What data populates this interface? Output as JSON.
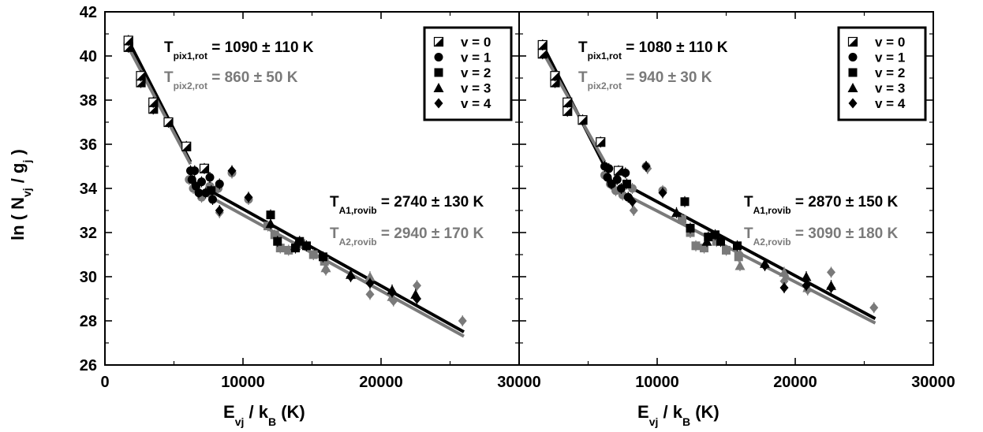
{
  "chart_data": {
    "type": "scatter",
    "ylabel": {
      "main": "ln ( N",
      "sub1": "vj",
      "mid": " / g",
      "sub2": "j",
      "end": ")"
    },
    "xlim": [
      0,
      30000
    ],
    "ylim": [
      26,
      42
    ],
    "x_ticks": [
      "0",
      "10000",
      "20000",
      "30000"
    ],
    "y_ticks": [
      "26",
      "28",
      "30",
      "32",
      "34",
      "36",
      "38",
      "40",
      "42"
    ],
    "xlabel": {
      "main": "E",
      "sub1": "vj",
      "mid": " / k",
      "sub2": "B",
      "end": " (K)"
    },
    "legend": {
      "placement": "top-right",
      "entries": [
        {
          "label": "v = 0",
          "marker": "half-square"
        },
        {
          "label": "v = 1",
          "marker": "circle"
        },
        {
          "label": "v = 2",
          "marker": "square"
        },
        {
          "label": "v = 3",
          "marker": "triangle"
        },
        {
          "label": "v = 4",
          "marker": "diamond"
        }
      ]
    },
    "colors": {
      "pix1": "#000000",
      "pix2": "#7a7a7a"
    },
    "panels": [
      {
        "annotations": {
          "rot1": {
            "sym": "T",
            "sub": "pix1,rot",
            "text": " = 1090 ± 110 K"
          },
          "rot2": {
            "sym": "T",
            "sub": "pix2,rot",
            "text": " = 860 ± 50 K"
          },
          "vib1": {
            "sym": "T",
            "sub": "A1,rovib",
            "text": " = 2740 ± 130 K"
          },
          "vib2": {
            "sym": "T",
            "sub": "A2,rovib",
            "text": " = 2940 ± 170 K"
          }
        },
        "fits": [
          {
            "name": "pix1 rot",
            "color": "pix1",
            "points": [
              [
                1700,
                40.7
              ],
              [
                6200,
                35.2
              ]
            ]
          },
          {
            "name": "pix2 rot",
            "color": "pix2",
            "points": [
              [
                1700,
                40.4
              ],
              [
                6200,
                35.1
              ]
            ]
          },
          {
            "name": "A1 rovib",
            "color": "pix1",
            "points": [
              [
                7600,
                33.9
              ],
              [
                26000,
                27.5
              ]
            ]
          },
          {
            "name": "A2 rovib",
            "color": "pix2",
            "points": [
              [
                6500,
                34.0
              ],
              [
                26000,
                27.3
              ]
            ]
          }
        ],
        "series": [
          {
            "v": 0,
            "points": [
              [
                1700,
                40.7,
                0
              ],
              [
                1700,
                40.4,
                1
              ],
              [
                2600,
                39.1,
                0
              ],
              [
                2600,
                38.8,
                1
              ],
              [
                3500,
                37.9,
                0
              ],
              [
                3500,
                37.6,
                1
              ],
              [
                4600,
                37.0,
                0
              ],
              [
                5900,
                35.9,
                0
              ],
              [
                7200,
                34.9,
                0
              ]
            ]
          },
          {
            "v": 1,
            "points": [
              [
                6200,
                34.8,
                1
              ],
              [
                6500,
                34.8,
                1
              ],
              [
                6300,
                34.4,
                1
              ],
              [
                6600,
                34.1,
                1
              ],
              [
                7000,
                34.3,
                1
              ],
              [
                7300,
                33.8,
                1
              ],
              [
                6800,
                33.8,
                1
              ],
              [
                7600,
                34.5,
                1
              ],
              [
                7800,
                33.5,
                1
              ],
              [
                8300,
                34.2,
                1
              ],
              [
                6100,
                34.4,
                2
              ],
              [
                6400,
                34.0,
                2
              ],
              [
                7000,
                33.6,
                2
              ],
              [
                7600,
                34.1,
                2
              ],
              [
                8200,
                34.0,
                2
              ],
              [
                9200,
                34.7,
                2
              ],
              [
                10400,
                33.5,
                2
              ]
            ]
          },
          {
            "v": 2,
            "points": [
              [
                7700,
                33.9,
                1
              ],
              [
                12000,
                32.8,
                1
              ],
              [
                12500,
                31.6,
                1
              ],
              [
                13800,
                31.3,
                1
              ],
              [
                14100,
                31.6,
                1
              ],
              [
                14600,
                31.4,
                1
              ],
              [
                15800,
                30.9,
                1
              ],
              [
                11800,
                32.3,
                2
              ],
              [
                12300,
                31.9,
                2
              ],
              [
                12700,
                31.3,
                2
              ],
              [
                13300,
                31.2,
                2
              ],
              [
                14200,
                31.5,
                2
              ],
              [
                15100,
                31.0,
                2
              ],
              [
                15900,
                30.7,
                2
              ]
            ]
          },
          {
            "v": 3,
            "points": [
              [
                12000,
                32.4,
                1
              ],
              [
                13800,
                31.4,
                1
              ],
              [
                17800,
                30.1,
                1
              ],
              [
                20800,
                29.4,
                1
              ],
              [
                22500,
                29.2,
                1
              ],
              [
                19200,
                30.0,
                2
              ],
              [
                20800,
                29.1,
                2
              ],
              [
                16000,
                30.4,
                2
              ]
            ]
          },
          {
            "v": 4,
            "points": [
              [
                8300,
                33.0,
                1
              ],
              [
                9200,
                34.8,
                1
              ],
              [
                10400,
                33.6,
                1
              ],
              [
                17800,
                30.0,
                1
              ],
              [
                19200,
                29.7,
                1
              ],
              [
                20800,
                29.3,
                1
              ],
              [
                22600,
                29.0,
                1
              ],
              [
                8300,
                32.9,
                2
              ],
              [
                9200,
                34.7,
                2
              ],
              [
                16000,
                30.3,
                2
              ],
              [
                19200,
                29.2,
                2
              ],
              [
                20900,
                28.9,
                2
              ],
              [
                22600,
                29.6,
                2
              ],
              [
                25900,
                28.0,
                2
              ]
            ]
          }
        ]
      },
      {
        "annotations": {
          "rot1": {
            "sym": "T",
            "sub": "pix1,rot",
            "text": " = 1080 ± 110 K"
          },
          "rot2": {
            "sym": "T",
            "sub": "pix2,rot",
            "text": " = 940 ± 30 K"
          },
          "vib1": {
            "sym": "T",
            "sub": "A1,rovib",
            "text": " = 2870 ± 150 K"
          },
          "vib2": {
            "sym": "T",
            "sub": "A2,rovib",
            "text": " = 3090 ± 180 K"
          }
        },
        "fits": [
          {
            "name": "pix1 rot",
            "color": "pix1",
            "points": [
              [
                1700,
                40.5
              ],
              [
                6200,
                35.0
              ]
            ]
          },
          {
            "name": "pix2 rot",
            "color": "pix2",
            "points": [
              [
                1700,
                40.2
              ],
              [
                6200,
                35.2
              ]
            ]
          },
          {
            "name": "A1 rovib",
            "color": "pix1",
            "points": [
              [
                7600,
                34.2
              ],
              [
                25800,
                28.1
              ]
            ]
          },
          {
            "name": "A2 rovib",
            "color": "pix2",
            "points": [
              [
                6500,
                34.1
              ],
              [
                25800,
                27.9
              ]
            ]
          }
        ],
        "series": [
          {
            "v": 0,
            "points": [
              [
                1700,
                40.5,
                0
              ],
              [
                1700,
                40.1,
                1
              ],
              [
                2600,
                39.1,
                0
              ],
              [
                2600,
                38.8,
                1
              ],
              [
                3500,
                37.9,
                0
              ],
              [
                3500,
                37.5,
                1
              ],
              [
                4600,
                37.1,
                0
              ],
              [
                5900,
                36.1,
                0
              ],
              [
                7200,
                34.8,
                0
              ]
            ]
          },
          {
            "v": 1,
            "points": [
              [
                6200,
                35.0,
                1
              ],
              [
                6500,
                34.9,
                1
              ],
              [
                6400,
                34.5,
                1
              ],
              [
                6700,
                34.2,
                1
              ],
              [
                7100,
                34.4,
                1
              ],
              [
                7400,
                34.0,
                1
              ],
              [
                7700,
                34.7,
                1
              ],
              [
                7900,
                33.6,
                1
              ],
              [
                6200,
                34.6,
                2
              ],
              [
                6600,
                34.2,
                2
              ],
              [
                7000,
                33.9,
                2
              ],
              [
                7500,
                33.7,
                2
              ],
              [
                8200,
                34.0,
                2
              ],
              [
                9200,
                35.0,
                2
              ],
              [
                10400,
                33.9,
                2
              ]
            ]
          },
          {
            "v": 2,
            "points": [
              [
                7800,
                34.2,
                1
              ],
              [
                12000,
                33.4,
                1
              ],
              [
                12400,
                32.2,
                1
              ],
              [
                13700,
                31.8,
                1
              ],
              [
                14200,
                31.9,
                1
              ],
              [
                14600,
                31.6,
                1
              ],
              [
                15800,
                31.4,
                1
              ],
              [
                11800,
                32.6,
                2
              ],
              [
                12400,
                32.0,
                2
              ],
              [
                12800,
                31.4,
                2
              ],
              [
                13400,
                31.3,
                2
              ],
              [
                14300,
                31.6,
                2
              ],
              [
                15000,
                31.2,
                2
              ],
              [
                15900,
                30.9,
                2
              ]
            ]
          },
          {
            "v": 3,
            "points": [
              [
                11400,
                32.9,
                1
              ],
              [
                13600,
                31.6,
                1
              ],
              [
                17800,
                30.6,
                1
              ],
              [
                20800,
                30.0,
                1
              ],
              [
                22600,
                29.6,
                1
              ],
              [
                19200,
                30.2,
                2
              ],
              [
                20900,
                29.5,
                2
              ],
              [
                16000,
                30.5,
                2
              ]
            ]
          },
          {
            "v": 4,
            "points": [
              [
                8200,
                33.4,
                1
              ],
              [
                9200,
                35.0,
                1
              ],
              [
                10400,
                33.8,
                1
              ],
              [
                17800,
                30.5,
                1
              ],
              [
                19200,
                29.5,
                1
              ],
              [
                20800,
                29.6,
                1
              ],
              [
                22600,
                29.5,
                1
              ],
              [
                8300,
                33.0,
                2
              ],
              [
                9300,
                34.9,
                2
              ],
              [
                16000,
                31.0,
                2
              ],
              [
                19200,
                29.8,
                2
              ],
              [
                20900,
                29.4,
                2
              ],
              [
                22600,
                30.2,
                2
              ],
              [
                25700,
                28.6,
                2
              ]
            ]
          }
        ]
      }
    ]
  }
}
